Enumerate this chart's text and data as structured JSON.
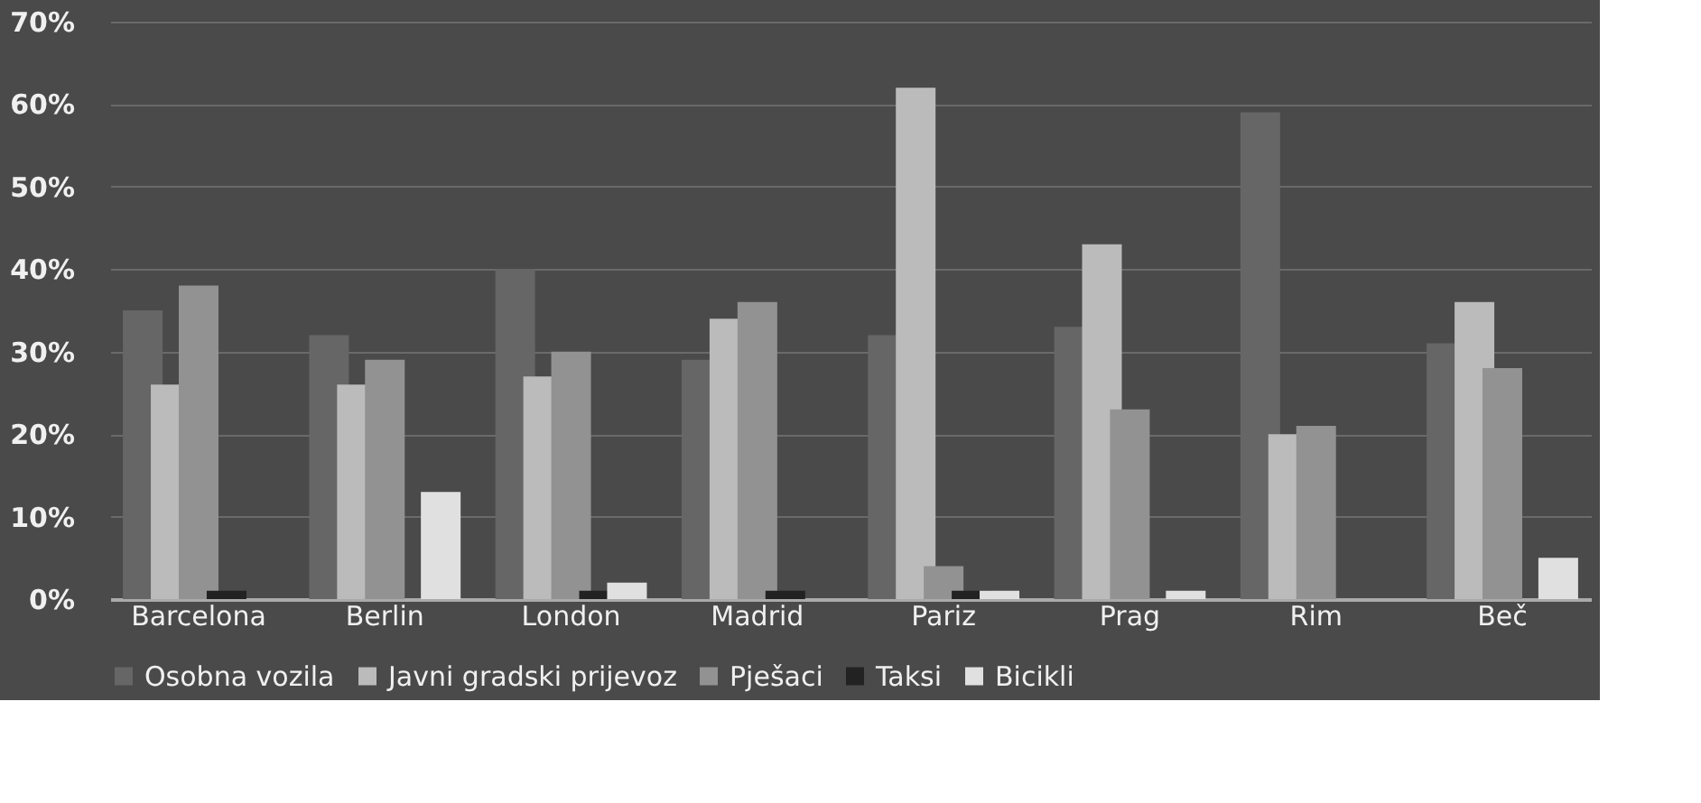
{
  "chart_data": {
    "type": "bar",
    "categories": [
      "Barcelona",
      "Berlin",
      "London",
      "Madrid",
      "Pariz",
      "Prag",
      "Rim",
      "Beč"
    ],
    "series": [
      {
        "name": "Osobna vozila",
        "color": "#666666",
        "values": [
          35,
          32,
          40,
          29,
          32,
          33,
          59,
          31
        ]
      },
      {
        "name": "Javni gradski prijevoz",
        "color": "#bbbbbb",
        "values": [
          26,
          26,
          27,
          34,
          62,
          43,
          20,
          36
        ]
      },
      {
        "name": "Pješaci",
        "color": "#929292",
        "values": [
          38,
          29,
          30,
          36,
          4,
          23,
          21,
          28
        ]
      },
      {
        "name": "Taksi",
        "color": "#222222",
        "values": [
          1,
          0,
          1,
          1,
          1,
          0,
          0,
          0
        ]
      },
      {
        "name": "Bicikli",
        "color": "#e0e0e0",
        "values": [
          0,
          13,
          2,
          0,
          1,
          1,
          0,
          5
        ]
      }
    ],
    "ylim": [
      0,
      70
    ],
    "yticks": [
      {
        "value": 0,
        "label": "0%"
      },
      {
        "value": 10,
        "label": "10%"
      },
      {
        "value": 20,
        "label": "20%"
      },
      {
        "value": 30,
        "label": "30%"
      },
      {
        "value": 40,
        "label": "40%"
      },
      {
        "value": 50,
        "label": "50%"
      },
      {
        "value": 60,
        "label": "60%"
      },
      {
        "value": 70,
        "label": "70%"
      }
    ],
    "grid": "y",
    "legend": "bottom"
  }
}
